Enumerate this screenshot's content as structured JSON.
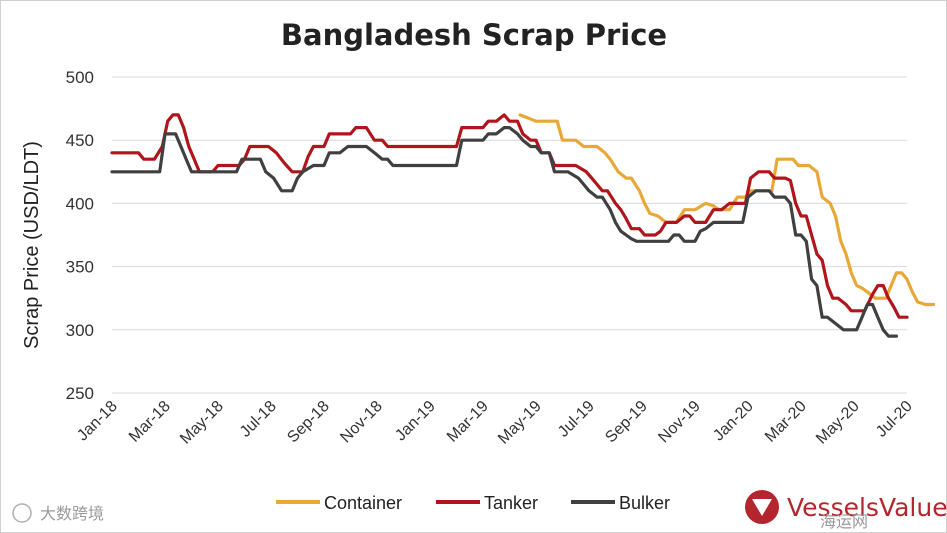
{
  "chart_data": {
    "type": "line",
    "title": "Bangladesh Scrap Price",
    "xlabel": "",
    "ylabel": "Scrap Price (USD/LDT)",
    "ylim": [
      250,
      500
    ],
    "yticks": [
      250,
      300,
      350,
      400,
      450,
      500
    ],
    "x_tick_labels": [
      "Jan-18",
      "Mar-18",
      "May-18",
      "Jul-18",
      "Sep-18",
      "Nov-18",
      "Jan-19",
      "Mar-19",
      "May-19",
      "Jul-19",
      "Sep-19",
      "Nov-19",
      "Jan-20",
      "Mar-20",
      "May-20",
      "Jul-20"
    ],
    "x_range_months": [
      0,
      30
    ],
    "grid": true,
    "legend_position": "bottom",
    "series": [
      {
        "name": "Container",
        "color": "#e8a838",
        "points": [
          [
            15.4,
            470
          ],
          [
            16.0,
            465
          ],
          [
            16.8,
            465
          ],
          [
            17.0,
            450
          ],
          [
            17.5,
            450
          ],
          [
            17.8,
            445
          ],
          [
            18.3,
            445
          ],
          [
            18.6,
            440
          ],
          [
            18.8,
            435
          ],
          [
            19.1,
            425
          ],
          [
            19.4,
            420
          ],
          [
            19.6,
            420
          ],
          [
            19.9,
            410
          ],
          [
            20.1,
            400
          ],
          [
            20.3,
            392
          ],
          [
            20.6,
            390
          ],
          [
            20.9,
            385
          ],
          [
            21.3,
            385
          ],
          [
            21.6,
            395
          ],
          [
            22.0,
            395
          ],
          [
            22.4,
            400
          ],
          [
            22.7,
            398
          ],
          [
            22.9,
            395
          ],
          [
            23.3,
            395
          ],
          [
            23.6,
            405
          ],
          [
            23.9,
            405
          ],
          [
            24.1,
            410
          ],
          [
            24.5,
            410
          ],
          [
            24.9,
            410
          ],
          [
            25.1,
            435
          ],
          [
            25.5,
            435
          ],
          [
            25.7,
            435
          ],
          [
            25.9,
            430
          ],
          [
            26.3,
            430
          ],
          [
            26.6,
            425
          ],
          [
            26.8,
            405
          ],
          [
            27.1,
            400
          ],
          [
            27.3,
            390
          ],
          [
            27.5,
            370
          ],
          [
            27.7,
            360
          ],
          [
            27.9,
            345
          ],
          [
            28.1,
            335
          ],
          [
            28.3,
            333
          ],
          [
            28.5,
            330
          ],
          [
            28.8,
            325
          ],
          [
            29.2,
            325
          ],
          [
            29.4,
            335
          ],
          [
            29.6,
            345
          ],
          [
            29.8,
            345
          ],
          [
            30.0,
            340
          ],
          [
            30.2,
            330
          ],
          [
            30.4,
            322
          ],
          [
            30.7,
            320
          ],
          [
            31.0,
            320
          ]
        ]
      },
      {
        "name": "Tanker",
        "color": "#b0151c",
        "points": [
          [
            0.0,
            440
          ],
          [
            1.0,
            440
          ],
          [
            1.2,
            435
          ],
          [
            1.6,
            435
          ],
          [
            1.9,
            445
          ],
          [
            2.1,
            465
          ],
          [
            2.3,
            470
          ],
          [
            2.5,
            470
          ],
          [
            2.7,
            460
          ],
          [
            2.9,
            445
          ],
          [
            3.1,
            435
          ],
          [
            3.3,
            425
          ],
          [
            3.6,
            425
          ],
          [
            3.8,
            425
          ],
          [
            4.0,
            430
          ],
          [
            4.5,
            430
          ],
          [
            4.8,
            430
          ],
          [
            5.0,
            435
          ],
          [
            5.2,
            445
          ],
          [
            5.6,
            445
          ],
          [
            5.9,
            445
          ],
          [
            6.2,
            440
          ],
          [
            6.5,
            432
          ],
          [
            6.8,
            425
          ],
          [
            7.2,
            425
          ],
          [
            7.4,
            437
          ],
          [
            7.6,
            445
          ],
          [
            8.0,
            445
          ],
          [
            8.2,
            455
          ],
          [
            8.6,
            455
          ],
          [
            9.0,
            455
          ],
          [
            9.2,
            460
          ],
          [
            9.6,
            460
          ],
          [
            9.9,
            450
          ],
          [
            10.2,
            450
          ],
          [
            10.4,
            445
          ],
          [
            11.0,
            445
          ],
          [
            12.0,
            445
          ],
          [
            13.0,
            445
          ],
          [
            13.2,
            460
          ],
          [
            13.6,
            460
          ],
          [
            14.0,
            460
          ],
          [
            14.2,
            465
          ],
          [
            14.5,
            465
          ],
          [
            14.8,
            470
          ],
          [
            15.0,
            465
          ],
          [
            15.3,
            465
          ],
          [
            15.5,
            455
          ],
          [
            15.8,
            450
          ],
          [
            16.0,
            450
          ],
          [
            16.2,
            440
          ],
          [
            16.5,
            440
          ],
          [
            16.7,
            430
          ],
          [
            17.2,
            430
          ],
          [
            17.5,
            430
          ],
          [
            17.9,
            425
          ],
          [
            18.1,
            420
          ],
          [
            18.3,
            415
          ],
          [
            18.5,
            410
          ],
          [
            18.7,
            410
          ],
          [
            19.0,
            400
          ],
          [
            19.2,
            395
          ],
          [
            19.4,
            388
          ],
          [
            19.6,
            380
          ],
          [
            19.9,
            380
          ],
          [
            20.1,
            375
          ],
          [
            20.5,
            375
          ],
          [
            20.7,
            378
          ],
          [
            20.9,
            385
          ],
          [
            21.3,
            385
          ],
          [
            21.6,
            390
          ],
          [
            21.8,
            390
          ],
          [
            22.0,
            385
          ],
          [
            22.4,
            385
          ],
          [
            22.7,
            395
          ],
          [
            23.0,
            395
          ],
          [
            23.3,
            400
          ],
          [
            23.6,
            400
          ],
          [
            23.9,
            400
          ],
          [
            24.1,
            420
          ],
          [
            24.4,
            425
          ],
          [
            24.8,
            425
          ],
          [
            25.0,
            420
          ],
          [
            25.4,
            420
          ],
          [
            25.6,
            418
          ],
          [
            25.8,
            400
          ],
          [
            26.0,
            390
          ],
          [
            26.2,
            390
          ],
          [
            26.4,
            375
          ],
          [
            26.6,
            360
          ],
          [
            26.8,
            355
          ],
          [
            27.0,
            335
          ],
          [
            27.2,
            325
          ],
          [
            27.4,
            325
          ],
          [
            27.7,
            320
          ],
          [
            27.9,
            315
          ],
          [
            28.1,
            315
          ],
          [
            28.4,
            315
          ],
          [
            28.7,
            328
          ],
          [
            28.9,
            335
          ],
          [
            29.1,
            335
          ],
          [
            29.3,
            325
          ],
          [
            29.5,
            318
          ],
          [
            29.7,
            310
          ],
          [
            30.0,
            310
          ]
        ]
      },
      {
        "name": "Bulker",
        "color": "#404040",
        "points": [
          [
            0.0,
            425
          ],
          [
            1.0,
            425
          ],
          [
            1.8,
            425
          ],
          [
            2.0,
            455
          ],
          [
            2.4,
            455
          ],
          [
            2.6,
            445
          ],
          [
            2.8,
            435
          ],
          [
            3.0,
            425
          ],
          [
            3.4,
            425
          ],
          [
            4.0,
            425
          ],
          [
            4.4,
            425
          ],
          [
            4.7,
            425
          ],
          [
            4.9,
            435
          ],
          [
            5.4,
            435
          ],
          [
            5.6,
            435
          ],
          [
            5.8,
            425
          ],
          [
            6.1,
            420
          ],
          [
            6.4,
            410
          ],
          [
            6.8,
            410
          ],
          [
            7.0,
            420
          ],
          [
            7.2,
            425
          ],
          [
            7.6,
            430
          ],
          [
            8.0,
            430
          ],
          [
            8.2,
            440
          ],
          [
            8.6,
            440
          ],
          [
            8.9,
            445
          ],
          [
            9.6,
            445
          ],
          [
            9.9,
            440
          ],
          [
            10.2,
            435
          ],
          [
            10.4,
            435
          ],
          [
            10.6,
            430
          ],
          [
            11.0,
            430
          ],
          [
            12.0,
            430
          ],
          [
            13.0,
            430
          ],
          [
            13.2,
            450
          ],
          [
            13.6,
            450
          ],
          [
            14.0,
            450
          ],
          [
            14.2,
            455
          ],
          [
            14.5,
            455
          ],
          [
            14.8,
            460
          ],
          [
            15.0,
            460
          ],
          [
            15.3,
            455
          ],
          [
            15.5,
            450
          ],
          [
            15.8,
            445
          ],
          [
            16.0,
            445
          ],
          [
            16.2,
            440
          ],
          [
            16.5,
            440
          ],
          [
            16.7,
            425
          ],
          [
            17.2,
            425
          ],
          [
            17.6,
            420
          ],
          [
            17.8,
            415
          ],
          [
            18.0,
            410
          ],
          [
            18.3,
            405
          ],
          [
            18.5,
            405
          ],
          [
            18.8,
            395
          ],
          [
            19.0,
            385
          ],
          [
            19.2,
            378
          ],
          [
            19.4,
            375
          ],
          [
            19.6,
            372
          ],
          [
            19.8,
            370
          ],
          [
            20.2,
            370
          ],
          [
            20.6,
            370
          ],
          [
            21.0,
            370
          ],
          [
            21.2,
            375
          ],
          [
            21.4,
            375
          ],
          [
            21.6,
            370
          ],
          [
            22.0,
            370
          ],
          [
            22.2,
            378
          ],
          [
            22.4,
            380
          ],
          [
            22.7,
            385
          ],
          [
            23.0,
            385
          ],
          [
            23.4,
            385
          ],
          [
            23.8,
            385
          ],
          [
            24.0,
            405
          ],
          [
            24.3,
            410
          ],
          [
            24.8,
            410
          ],
          [
            25.0,
            405
          ],
          [
            25.4,
            405
          ],
          [
            25.6,
            400
          ],
          [
            25.8,
            375
          ],
          [
            26.0,
            375
          ],
          [
            26.2,
            370
          ],
          [
            26.4,
            340
          ],
          [
            26.6,
            335
          ],
          [
            26.8,
            310
          ],
          [
            27.0,
            310
          ],
          [
            27.3,
            305
          ],
          [
            27.6,
            300
          ],
          [
            27.9,
            300
          ],
          [
            28.1,
            300
          ],
          [
            28.3,
            310
          ],
          [
            28.5,
            320
          ],
          [
            28.7,
            320
          ],
          [
            28.9,
            310
          ],
          [
            29.1,
            300
          ],
          [
            29.3,
            295
          ],
          [
            29.6,
            295
          ]
        ]
      }
    ]
  },
  "brand": {
    "name": "VesselsValue"
  },
  "watermarks": {
    "left": "大数跨境",
    "right": "海运网"
  }
}
